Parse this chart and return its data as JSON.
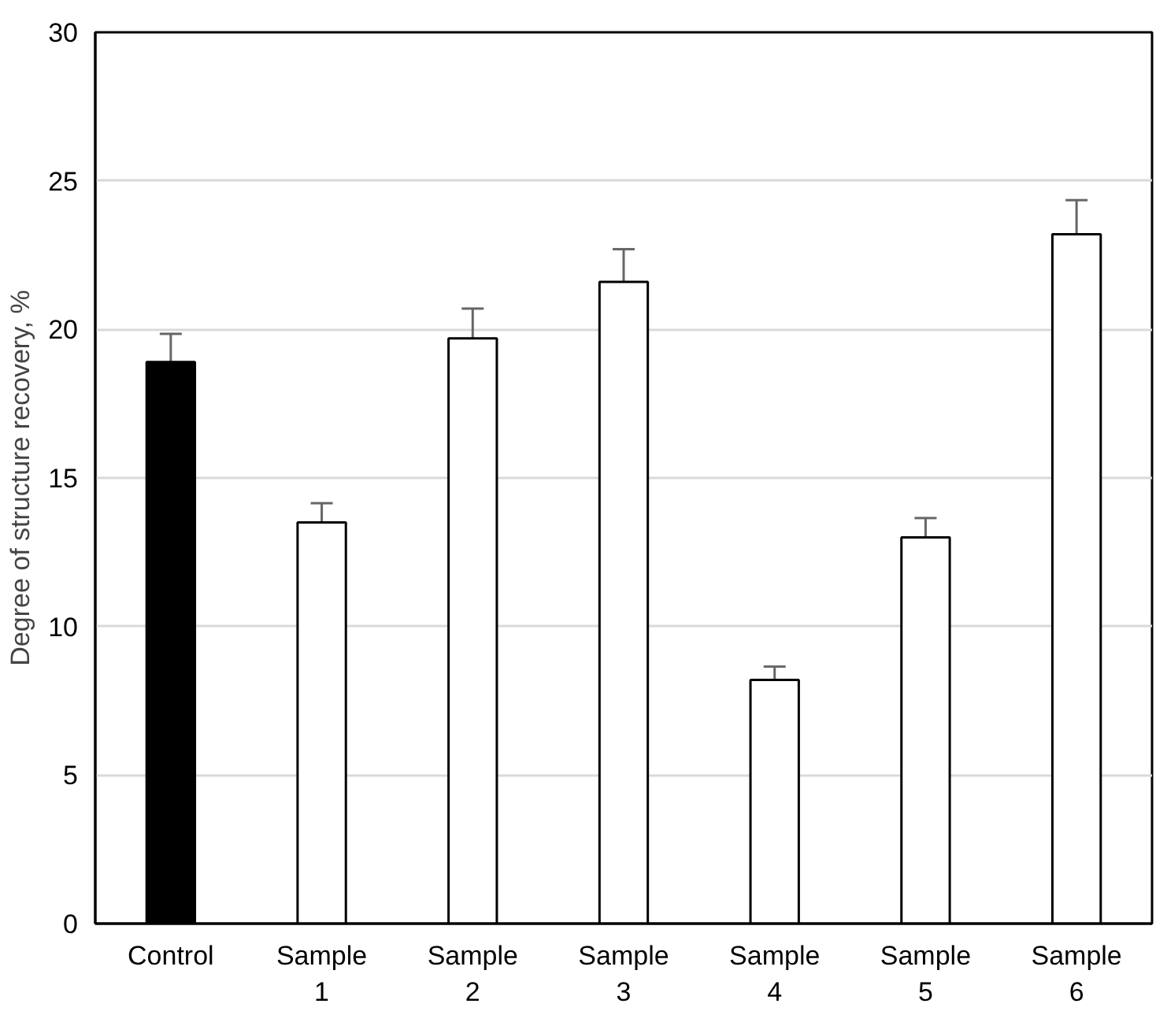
{
  "chart_data": {
    "type": "bar",
    "ylabel": "Degree of structure recovery, %",
    "categories": [
      "Control",
      "Sample 1",
      "Sample 2",
      "Sample 3",
      "Sample 4",
      "Sample 5",
      "Sample 6"
    ],
    "values": [
      18.9,
      13.5,
      19.7,
      21.6,
      8.2,
      13.0,
      23.2
    ],
    "errors": [
      0.95,
      0.65,
      1.0,
      1.1,
      0.45,
      0.65,
      1.15
    ],
    "colors": [
      "#000000",
      "#ffffff",
      "#ffffff",
      "#ffffff",
      "#ffffff",
      "#ffffff",
      "#ffffff"
    ],
    "ylim": [
      0,
      30
    ],
    "yticks": [
      0,
      5,
      10,
      15,
      20,
      25,
      30
    ],
    "grid": "y"
  }
}
